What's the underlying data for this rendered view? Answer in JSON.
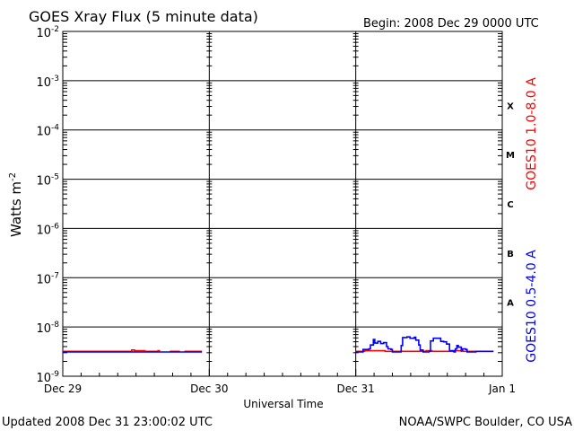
{
  "header": {
    "title": "GOES Xray Flux (5 minute data)",
    "begin": "Begin:  2008 Dec 29 0000 UTC"
  },
  "footer": {
    "updated": "Updated 2008 Dec 31 23:00:02 UTC",
    "credit": "NOAA/SWPC Boulder, CO USA"
  },
  "chart_data": {
    "type": "line",
    "title": "GOES Xray Flux (5 minute data)",
    "xlabel": "Universal Time",
    "ylabel": "Watts m-2",
    "y_scale": "log",
    "ylim": [
      1e-09,
      0.01
    ],
    "xlim": [
      0,
      3
    ],
    "x_unit": "days since 2008 Dec 29 0000 UTC",
    "x_ticks": [
      {
        "x": 0,
        "label": "Dec 29"
      },
      {
        "x": 1,
        "label": "Dec 30"
      },
      {
        "x": 2,
        "label": "Dec 31"
      },
      {
        "x": 3,
        "label": "Jan 1"
      }
    ],
    "y_ticks": [
      {
        "exp": -9,
        "label": "10",
        "sup": "-9"
      },
      {
        "exp": -8,
        "label": "10",
        "sup": "-8"
      },
      {
        "exp": -7,
        "label": "10",
        "sup": "-7"
      },
      {
        "exp": -6,
        "label": "10",
        "sup": "-6"
      },
      {
        "exp": -5,
        "label": "10",
        "sup": "-5"
      },
      {
        "exp": -4,
        "label": "10",
        "sup": "-4"
      },
      {
        "exp": -3,
        "label": "10",
        "sup": "-3"
      },
      {
        "exp": -2,
        "label": "10",
        "sup": "-2"
      }
    ],
    "flare_classes": [
      {
        "label": "A",
        "exp": -8
      },
      {
        "label": "B",
        "exp": -7
      },
      {
        "label": "C",
        "exp": -6
      },
      {
        "label": "M",
        "exp": -5
      },
      {
        "label": "X",
        "exp": -4
      }
    ],
    "grid": {
      "horizontal_decades": true,
      "vertical_day_ticks": true
    },
    "legend_position": "right, vertical",
    "series": [
      {
        "name": "GOES10 1.0-8.0 A",
        "color": "#ff0000",
        "segments": [
          [
            [
              0.0,
              3.2e-09
            ],
            [
              0.46,
              3.2e-09
            ],
            [
              0.47,
              3.4e-09
            ],
            [
              0.49,
              3.3e-09
            ],
            [
              0.56,
              3.2e-09
            ],
            [
              0.64,
              3.2e-09
            ],
            [
              0.65,
              3.3e-09
            ],
            [
              0.66,
              3.2e-09
            ]
          ],
          [
            [
              0.73,
              3.2e-09
            ],
            [
              0.8,
              3.2e-09
            ]
          ],
          [
            [
              0.83,
              3.2e-09
            ],
            [
              0.95,
              3.2e-09
            ]
          ],
          [
            [
              2.0,
              3.2e-09
            ],
            [
              2.04,
              3.2e-09
            ],
            [
              2.06,
              3.3e-09
            ],
            [
              2.1,
              3.3e-09
            ],
            [
              2.2,
              3.2e-09
            ],
            [
              2.45,
              3.2e-09
            ],
            [
              2.48,
              3.3e-09
            ],
            [
              2.52,
              3.2e-09
            ],
            [
              2.68,
              3.3e-09
            ],
            [
              2.72,
              3.2e-09
            ],
            [
              2.94,
              3.2e-09
            ]
          ]
        ]
      },
      {
        "name": "GOES10 0.5-4.0 A",
        "color": "#0000ff",
        "segments": [
          [
            [
              0.0,
              3.1e-09
            ],
            [
              0.95,
              3.1e-09
            ]
          ],
          [
            [
              2.0,
              3.1e-09
            ],
            [
              2.04,
              3.1e-09
            ],
            [
              2.05,
              3.5e-09
            ],
            [
              2.09,
              3.6e-09
            ],
            [
              2.1,
              4.3e-09
            ],
            [
              2.12,
              5.6e-09
            ],
            [
              2.13,
              4.7e-09
            ],
            [
              2.15,
              5.1e-09
            ],
            [
              2.17,
              4.6e-09
            ],
            [
              2.19,
              4.8e-09
            ],
            [
              2.21,
              4e-09
            ],
            [
              2.22,
              3.6e-09
            ],
            [
              2.24,
              3.5e-09
            ],
            [
              2.25,
              3.1e-09
            ],
            [
              2.3,
              3.1e-09
            ],
            [
              2.31,
              4.2e-09
            ],
            [
              2.32,
              6.1e-09
            ],
            [
              2.35,
              6.3e-09
            ],
            [
              2.37,
              5.9e-09
            ],
            [
              2.4,
              6.2e-09
            ],
            [
              2.41,
              5.4e-09
            ],
            [
              2.43,
              4.3e-09
            ],
            [
              2.44,
              3.4e-09
            ],
            [
              2.46,
              3.1e-09
            ],
            [
              2.5,
              3.2e-09
            ],
            [
              2.51,
              5.2e-09
            ],
            [
              2.53,
              5.9e-09
            ],
            [
              2.57,
              5.9e-09
            ],
            [
              2.58,
              5.1e-09
            ],
            [
              2.6,
              5e-09
            ],
            [
              2.62,
              4.5e-09
            ],
            [
              2.64,
              3.3e-09
            ],
            [
              2.67,
              3.1e-09
            ],
            [
              2.68,
              3.6e-09
            ],
            [
              2.69,
              4.2e-09
            ],
            [
              2.7,
              3.9e-09
            ],
            [
              2.72,
              3.4e-09
            ],
            [
              2.73,
              3.6e-09
            ],
            [
              2.75,
              3.5e-09
            ],
            [
              2.76,
              3.1e-09
            ],
            [
              2.8,
              3.1e-09
            ],
            [
              2.82,
              3.2e-09
            ],
            [
              2.94,
              3.2e-09
            ]
          ]
        ]
      }
    ]
  }
}
